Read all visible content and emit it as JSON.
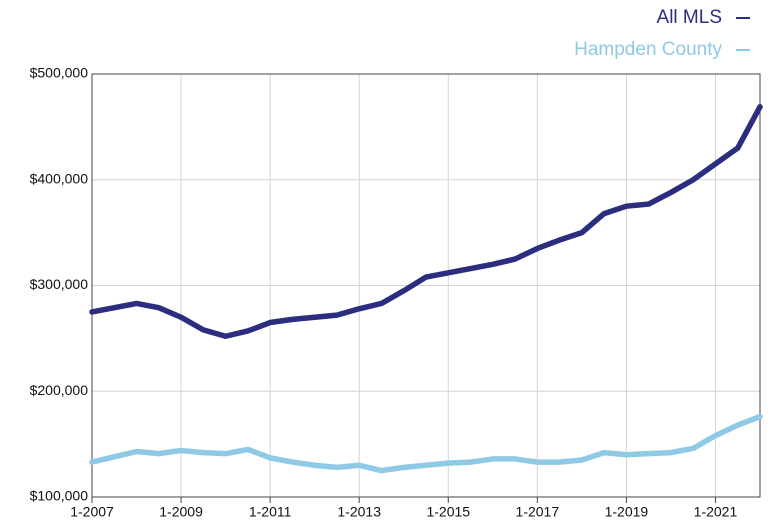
{
  "chart_data": {
    "type": "line",
    "x": [
      2007,
      2007.5,
      2008,
      2008.5,
      2009,
      2009.5,
      2010,
      2010.5,
      2011,
      2011.5,
      2012,
      2012.5,
      2013,
      2013.5,
      2014,
      2014.5,
      2015,
      2015.5,
      2016,
      2016.5,
      2017,
      2017.5,
      2018,
      2018.5,
      2019,
      2019.5,
      2020,
      2020.5,
      2021,
      2021.5,
      2022
    ],
    "series": [
      {
        "name": "All MLS",
        "color": "#2b2d7e",
        "values": [
          275000,
          279000,
          283000,
          279000,
          270000,
          258000,
          252000,
          257000,
          265000,
          268000,
          270000,
          272000,
          278000,
          283000,
          295000,
          308000,
          312000,
          316000,
          320000,
          325000,
          335000,
          343000,
          350000,
          368000,
          375000,
          377000,
          388000,
          400000,
          415000,
          430000,
          469000
        ]
      },
      {
        "name": "Hampden County",
        "color": "#8ec9e6",
        "values": [
          133000,
          138000,
          143000,
          141000,
          144000,
          142000,
          141000,
          145000,
          137000,
          133000,
          130000,
          128000,
          130000,
          125000,
          128000,
          130000,
          132000,
          133000,
          136000,
          136000,
          133000,
          133000,
          135000,
          142000,
          140000,
          141000,
          142000,
          146000,
          158000,
          168000,
          176000
        ]
      }
    ],
    "xlim": [
      2007,
      2022
    ],
    "xticks": [
      {
        "value": 2007,
        "label": "1-2007"
      },
      {
        "value": 2009,
        "label": "1-2009"
      },
      {
        "value": 2011,
        "label": "1-2011"
      },
      {
        "value": 2013,
        "label": "1-2013"
      },
      {
        "value": 2015,
        "label": "1-2015"
      },
      {
        "value": 2017,
        "label": "1-2017"
      },
      {
        "value": 2019,
        "label": "1-2019"
      },
      {
        "value": 2021,
        "label": "1-2021"
      }
    ],
    "ylim": [
      100000,
      500000
    ],
    "yticks": [
      {
        "value": 100000,
        "label": "$100,000"
      },
      {
        "value": 200000,
        "label": "$200,000"
      },
      {
        "value": 300000,
        "label": "$300,000"
      },
      {
        "value": 400000,
        "label": "$400,000"
      },
      {
        "value": 500000,
        "label": "$500,000"
      }
    ],
    "grid": true,
    "legend": "top-right"
  }
}
